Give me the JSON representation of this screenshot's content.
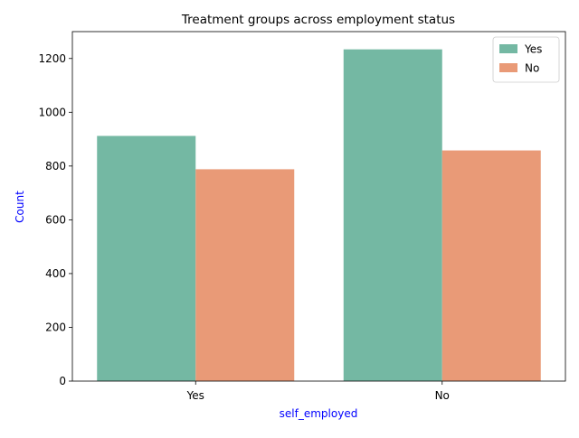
{
  "chart_data": {
    "type": "bar",
    "title": "Treatment groups across employment status",
    "xlabel": "self_employed",
    "ylabel": "Count",
    "categories": [
      "Yes",
      "No"
    ],
    "series": [
      {
        "name": "Yes",
        "values": [
          912,
          1234
        ]
      },
      {
        "name": "No",
        "values": [
          788,
          858
        ]
      }
    ],
    "ylim": [
      0,
      1300
    ],
    "yticks": [
      0,
      200,
      400,
      600,
      800,
      1000,
      1200
    ],
    "grid": false,
    "legend_position": "top-right",
    "colors": {
      "series": [
        "#74b8a3",
        "#e99a77"
      ],
      "axis_label": "#0000ff",
      "text": "#000000"
    }
  }
}
